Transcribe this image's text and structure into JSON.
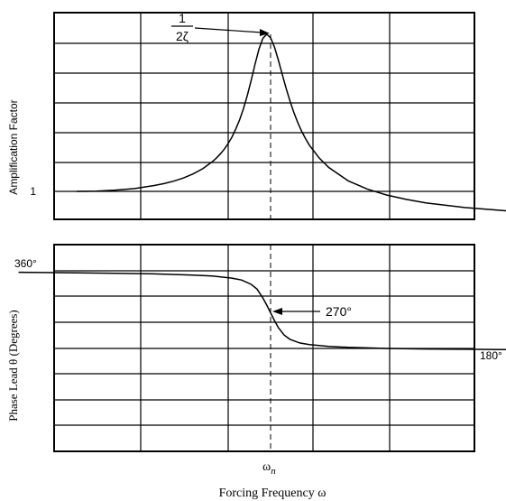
{
  "chart_data": [
    {
      "type": "line",
      "ylabel": "Amplification Factor",
      "y_tick_labels": [
        "1"
      ],
      "annotation": {
        "numerator": "1",
        "denominator": "2ζ"
      },
      "grid": true,
      "series": [
        {
          "x": [
            0.0,
            0.1,
            0.2,
            0.3,
            0.4,
            0.45,
            0.5,
            0.55,
            0.6,
            0.65,
            0.7,
            0.72,
            0.74,
            0.76,
            0.78,
            0.8,
            0.82,
            0.84,
            0.86,
            0.88,
            0.9,
            0.92,
            0.94,
            0.96,
            0.98,
            1.0,
            1.02,
            1.04,
            1.06,
            1.08,
            1.1,
            1.12,
            1.14,
            1.16,
            1.18,
            1.2,
            1.25,
            1.3,
            1.4,
            1.5,
            1.6,
            1.7,
            1.8,
            2.0,
            2.2,
            2.4,
            2.6,
            2.8,
            3.0
          ],
          "y": [
            1.0,
            1.01,
            1.04,
            1.09,
            1.19,
            1.25,
            1.33,
            1.43,
            1.56,
            1.73,
            1.96,
            2.07,
            2.2,
            2.35,
            2.53,
            2.74,
            3.0,
            3.3,
            3.66,
            4.09,
            4.58,
            5.1,
            5.58,
            5.93,
            6.06,
            5.95,
            5.65,
            5.23,
            4.77,
            4.32,
            3.91,
            3.54,
            3.22,
            2.94,
            2.7,
            2.49,
            2.08,
            1.77,
            1.34,
            1.07,
            0.88,
            0.74,
            0.63,
            0.48,
            0.38,
            0.31,
            0.25,
            0.21,
            0.18
          ]
        }
      ]
    },
    {
      "type": "line",
      "xlabel": "Forcing Frequency ω",
      "ylabel": "Phase Lead θ (Degrees)",
      "y_tick_labels": [
        "360°"
      ],
      "right_label": "180°",
      "annotation": "270°",
      "x_marker": {
        "label": "ω",
        "subscript": "n",
        "x": 1.0
      },
      "grid": true,
      "series": [
        {
          "x": [
            -0.3,
            0.0,
            0.2,
            0.4,
            0.6,
            0.7,
            0.8,
            0.85,
            0.9,
            0.93,
            0.96,
            0.98,
            1.0,
            1.02,
            1.04,
            1.07,
            1.1,
            1.15,
            1.2,
            1.3,
            1.4,
            1.6,
            1.8,
            2.0,
            2.2,
            2.4,
            2.6,
            2.8,
            3.0
          ],
          "y": [
            356.9,
            355.7,
            354.8,
            353.5,
            351.0,
            348.8,
            344.3,
            340.2,
            330.9,
            320.8,
            302.0,
            286.6,
            270.0,
            253.4,
            238.0,
            222.2,
            213.2,
            205.4,
            201.7,
            198.0,
            195.9,
            193.6,
            192.4,
            191.8,
            191.3,
            190.8,
            190.3,
            189.9,
            189.6
          ]
        }
      ]
    }
  ]
}
